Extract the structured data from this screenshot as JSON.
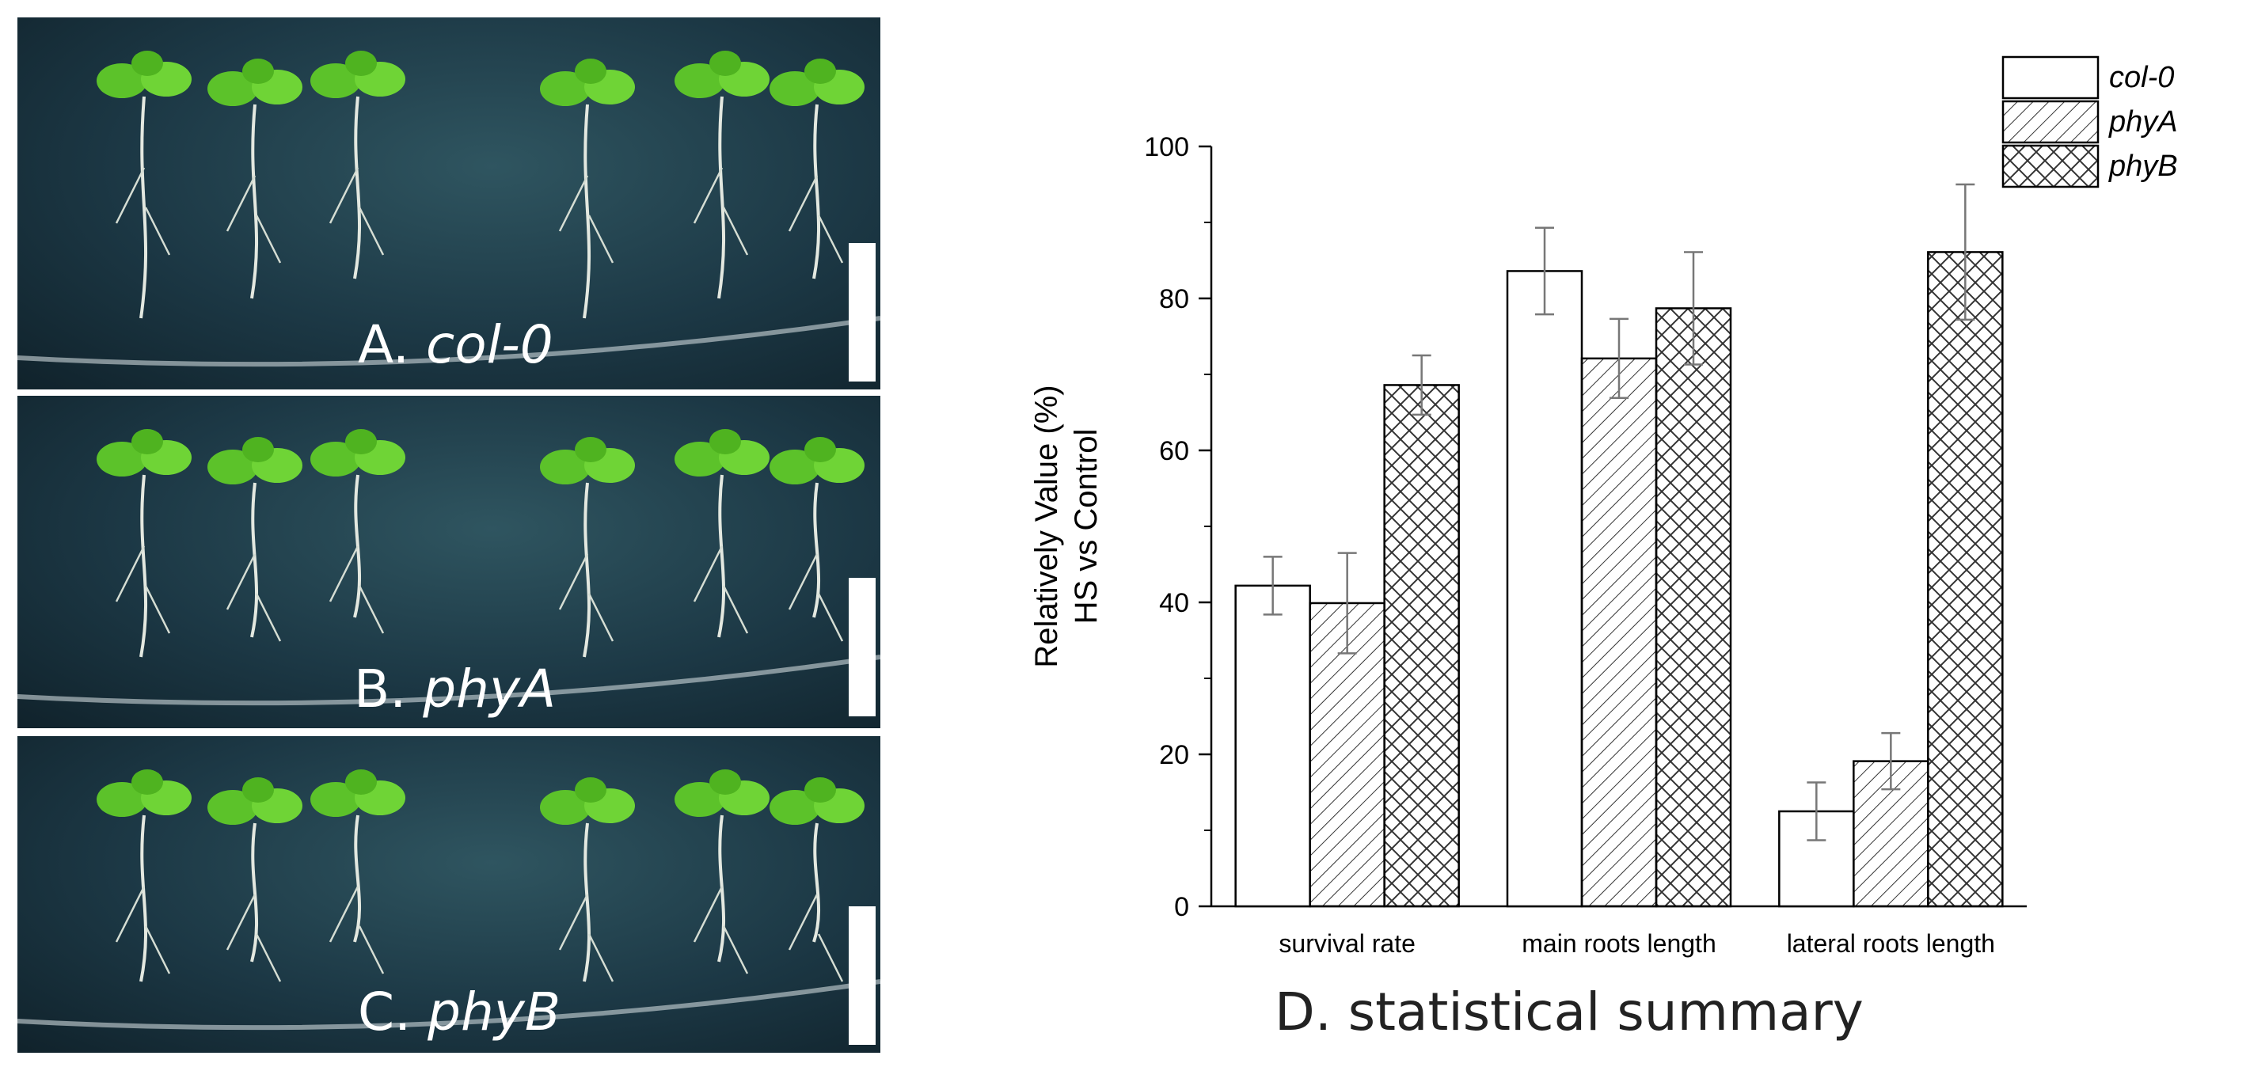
{
  "panels": [
    {
      "prefix": "A.",
      "genotype": "col-0"
    },
    {
      "prefix": "B.",
      "genotype": "phyA"
    },
    {
      "prefix": "C.",
      "genotype": "phyB"
    }
  ],
  "caption": "D. statistical summary",
  "chart_data": {
    "type": "bar",
    "categories": [
      "survival rate",
      "main roots length",
      "lateral roots length"
    ],
    "series": [
      {
        "name": "col-0",
        "pattern": "none",
        "values": [
          42.2,
          83.6,
          12.5
        ],
        "errors": [
          3.8,
          5.7,
          3.8
        ]
      },
      {
        "name": "phyA",
        "pattern": "hatch",
        "values": [
          39.9,
          72.1,
          19.1
        ],
        "errors": [
          6.6,
          5.2,
          3.7
        ]
      },
      {
        "name": "phyB",
        "pattern": "cross",
        "values": [
          68.6,
          78.7,
          86.1
        ],
        "errors": [
          3.9,
          7.4,
          8.9
        ]
      }
    ],
    "ylabel_line1": "Relatively Value (%)",
    "ylabel_line2": "HS vs Control",
    "ylim": [
      0,
      100
    ],
    "yticks": [
      "0",
      "20",
      "40",
      "60",
      "80",
      "100"
    ],
    "legend_position": "top-right",
    "grid": false
  }
}
